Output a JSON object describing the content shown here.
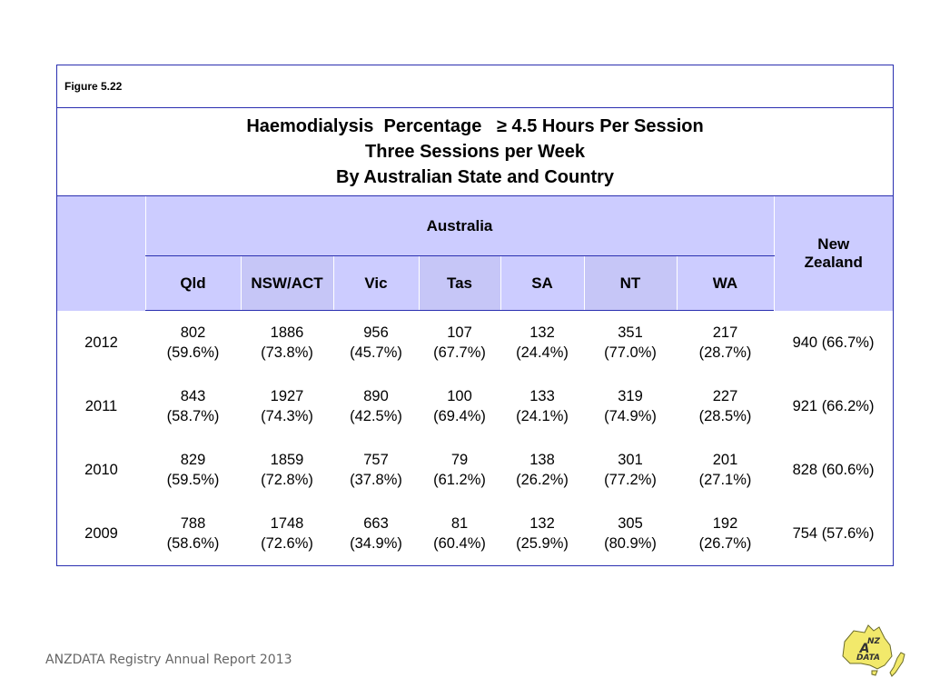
{
  "figure_label": "Figure 5.22",
  "title_lines": [
    "Haemodialysis  Percentage   ≥ 4.5 Hours Per Session",
    "Three Sessions per Week",
    "By Australian State and Country"
  ],
  "group_header": "Australia",
  "nz_header": "New Zealand",
  "states": [
    "Qld",
    "NSW/ACT",
    "Vic",
    "Tas",
    "SA",
    "NT",
    "WA"
  ],
  "rows": [
    {
      "year": "2012",
      "cells": [
        [
          "802",
          "(59.6%)"
        ],
        [
          "1886",
          "(73.8%)"
        ],
        [
          "956",
          "(45.7%)"
        ],
        [
          "107",
          "(67.7%)"
        ],
        [
          "132",
          "(24.4%)"
        ],
        [
          "351",
          "(77.0%)"
        ],
        [
          "217",
          "(28.7%)"
        ]
      ],
      "nz": "940 (66.7%)"
    },
    {
      "year": "2011",
      "cells": [
        [
          "843",
          "(58.7%)"
        ],
        [
          "1927",
          "(74.3%)"
        ],
        [
          "890",
          "(42.5%)"
        ],
        [
          "100",
          "(69.4%)"
        ],
        [
          "133",
          "(24.1%)"
        ],
        [
          "319",
          "(74.9%)"
        ],
        [
          "227",
          "(28.5%)"
        ]
      ],
      "nz": "921 (66.2%)"
    },
    {
      "year": "2010",
      "cells": [
        [
          "829",
          "(59.5%)"
        ],
        [
          "1859",
          "(72.8%)"
        ],
        [
          "757",
          "(37.8%)"
        ],
        [
          "79",
          "(61.2%)"
        ],
        [
          "138",
          "(26.2%)"
        ],
        [
          "301",
          "(77.2%)"
        ],
        [
          "201",
          "(27.1%)"
        ]
      ],
      "nz": "828 (60.6%)"
    },
    {
      "year": "2009",
      "cells": [
        [
          "788",
          "(58.6%)"
        ],
        [
          "1748",
          "(72.6%)"
        ],
        [
          "663",
          "(34.9%)"
        ],
        [
          "81",
          "(60.4%)"
        ],
        [
          "132",
          "(25.9%)"
        ],
        [
          "305",
          "(80.9%)"
        ],
        [
          "192",
          "(26.7%)"
        ]
      ],
      "nz": "754 (57.6%)"
    }
  ],
  "footer": "ANZDATA Registry Annual Report 2013",
  "logo_text": "ANZDATA",
  "colors": {
    "border": "#2a2fb0",
    "header_fill": "#ccccff",
    "logo_fill": "#f2e96b"
  }
}
